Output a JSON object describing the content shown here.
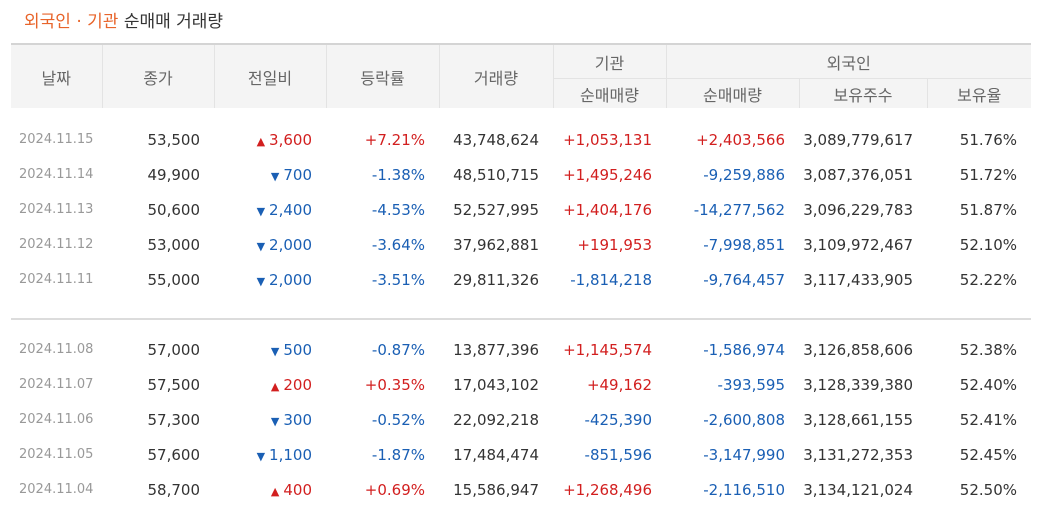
{
  "title": {
    "highlight": "외국인 · 기관",
    "rest": "순매매 거래량"
  },
  "headers": {
    "date": "날짜",
    "close": "종가",
    "change": "전일비",
    "rate": "등락률",
    "volume": "거래량",
    "institution": "기관",
    "foreigner": "외국인",
    "inst_net": "순매매량",
    "for_net": "순매매량",
    "holdings": "보유주수",
    "ratio": "보유율"
  },
  "colors": {
    "up": "#d21f1f",
    "down": "#1a5fb4",
    "accent": "#e8642a"
  },
  "rows": [
    {
      "date": "2024.11.15",
      "close": "53,500",
      "dir": "up",
      "change": "3,600",
      "rate": "+7.21%",
      "volume": "43,748,624",
      "inst": "+1,053,131",
      "foreign": "+2,403,566",
      "holdings": "3,089,779,617",
      "ratio": "51.76%"
    },
    {
      "date": "2024.11.14",
      "close": "49,900",
      "dir": "down",
      "change": "700",
      "rate": "-1.38%",
      "volume": "48,510,715",
      "inst": "+1,495,246",
      "foreign": "-9,259,886",
      "holdings": "3,087,376,051",
      "ratio": "51.72%"
    },
    {
      "date": "2024.11.13",
      "close": "50,600",
      "dir": "down",
      "change": "2,400",
      "rate": "-4.53%",
      "volume": "52,527,995",
      "inst": "+1,404,176",
      "foreign": "-14,277,562",
      "holdings": "3,096,229,783",
      "ratio": "51.87%"
    },
    {
      "date": "2024.11.12",
      "close": "53,000",
      "dir": "down",
      "change": "2,000",
      "rate": "-3.64%",
      "volume": "37,962,881",
      "inst": "+191,953",
      "foreign": "-7,998,851",
      "holdings": "3,109,972,467",
      "ratio": "52.10%"
    },
    {
      "date": "2024.11.11",
      "close": "55,000",
      "dir": "down",
      "change": "2,000",
      "rate": "-3.51%",
      "volume": "29,811,326",
      "inst": "-1,814,218",
      "foreign": "-9,764,457",
      "holdings": "3,117,433,905",
      "ratio": "52.22%"
    },
    {
      "date": "2024.11.08",
      "close": "57,000",
      "dir": "down",
      "change": "500",
      "rate": "-0.87%",
      "volume": "13,877,396",
      "inst": "+1,145,574",
      "foreign": "-1,586,974",
      "holdings": "3,126,858,606",
      "ratio": "52.38%"
    },
    {
      "date": "2024.11.07",
      "close": "57,500",
      "dir": "up",
      "change": "200",
      "rate": "+0.35%",
      "volume": "17,043,102",
      "inst": "+49,162",
      "foreign": "-393,595",
      "holdings": "3,128,339,380",
      "ratio": "52.40%"
    },
    {
      "date": "2024.11.06",
      "close": "57,300",
      "dir": "down",
      "change": "300",
      "rate": "-0.52%",
      "volume": "22,092,218",
      "inst": "-425,390",
      "foreign": "-2,600,808",
      "holdings": "3,128,661,155",
      "ratio": "52.41%"
    },
    {
      "date": "2024.11.05",
      "close": "57,600",
      "dir": "down",
      "change": "1,100",
      "rate": "-1.87%",
      "volume": "17,484,474",
      "inst": "-851,596",
      "foreign": "-3,147,990",
      "holdings": "3,131,272,353",
      "ratio": "52.45%"
    },
    {
      "date": "2024.11.04",
      "close": "58,700",
      "dir": "up",
      "change": "400",
      "rate": "+0.69%",
      "volume": "15,586,947",
      "inst": "+1,268,496",
      "foreign": "-2,116,510",
      "holdings": "3,134,121,024",
      "ratio": "52.50%"
    }
  ]
}
